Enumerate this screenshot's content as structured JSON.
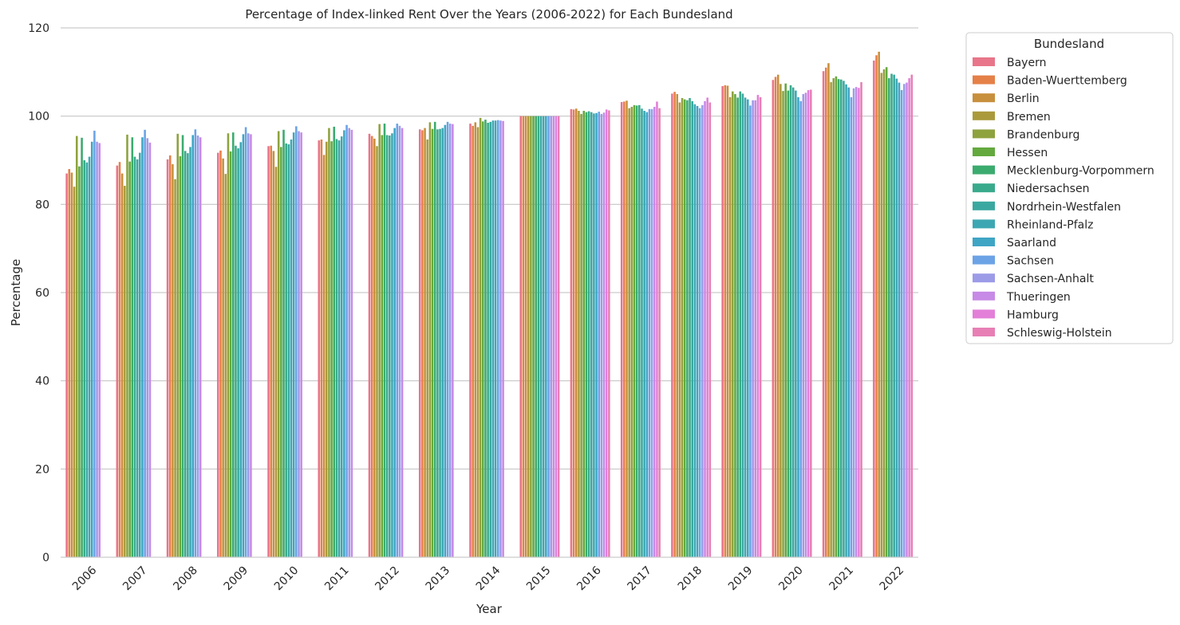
{
  "chart_data": {
    "type": "bar",
    "title": "Percentage of Index-linked Rent Over the Years (2006-2022) for Each Bundesland",
    "xlabel": "Year",
    "ylabel": "Percentage",
    "ylim": [
      0,
      120
    ],
    "yticks": [
      0,
      20,
      40,
      60,
      80,
      100,
      120
    ],
    "grid": "horizontal",
    "legend_title": "Bundesland",
    "legend_position": "outside-right",
    "categories": [
      "2006",
      "2007",
      "2008",
      "2009",
      "2010",
      "2011",
      "2012",
      "2013",
      "2014",
      "2015",
      "2016",
      "2017",
      "2018",
      "2019",
      "2020",
      "2021",
      "2022"
    ],
    "series": [
      {
        "name": "Bayern",
        "color": "#e8758a",
        "values": [
          87.0,
          88.8,
          90.2,
          91.7,
          93.2,
          94.5,
          96.0,
          97.0,
          98.3,
          100,
          101.6,
          103.2,
          105.1,
          106.8,
          108.2,
          110.2,
          112.6
        ]
      },
      {
        "name": "Baden-Wuerttemberg",
        "color": "#e58048",
        "values": [
          88.0,
          89.6,
          91.1,
          92.2,
          93.3,
          94.7,
          95.5,
          96.8,
          97.8,
          100,
          101.5,
          103.3,
          105.5,
          107.0,
          108.9,
          111.0,
          113.8
        ]
      },
      {
        "name": "Berlin",
        "color": "#c88f3c",
        "values": [
          87.2,
          87.0,
          89.1,
          90.4,
          92.1,
          91.2,
          94.9,
          97.3,
          98.6,
          100,
          101.7,
          103.5,
          105.0,
          106.9,
          109.4,
          112.0,
          114.6
        ]
      },
      {
        "name": "Bremen",
        "color": "#ab9a3c",
        "values": [
          84.0,
          84.2,
          85.7,
          86.9,
          88.5,
          94.2,
          93.2,
          94.7,
          97.5,
          100,
          101.2,
          101.8,
          103.1,
          104.3,
          107.3,
          107.7,
          109.8
        ]
      },
      {
        "name": "Brandenburg",
        "color": "#8ea23e",
        "values": [
          95.5,
          95.8,
          96.0,
          96.1,
          96.6,
          97.3,
          98.2,
          98.6,
          99.6,
          100,
          100.5,
          102.1,
          104.1,
          105.6,
          105.7,
          108.6,
          110.6
        ]
      },
      {
        "name": "Hessen",
        "color": "#63a93e",
        "values": [
          88.6,
          89.7,
          90.9,
          92.0,
          93.0,
          94.3,
          95.7,
          97.1,
          98.8,
          100,
          101.2,
          102.5,
          103.8,
          105.0,
          107.4,
          109.0,
          111.1
        ]
      },
      {
        "name": "Mecklenburg-Vorpommern",
        "color": "#3bab6e",
        "values": [
          95.1,
          95.2,
          95.7,
          96.3,
          96.9,
          97.6,
          98.3,
          98.7,
          99.2,
          100,
          100.9,
          102.4,
          103.6,
          104.2,
          105.8,
          108.4,
          108.6
        ]
      },
      {
        "name": "Niedersachsen",
        "color": "#39aa8b",
        "values": [
          90.0,
          90.8,
          92.1,
          93.3,
          93.8,
          94.8,
          95.7,
          97.0,
          98.5,
          100,
          101.1,
          102.5,
          104.1,
          105.6,
          107.0,
          108.3,
          109.6
        ]
      },
      {
        "name": "Nordrhein-Westfalen",
        "color": "#3aa8a0",
        "values": [
          89.5,
          90.2,
          91.6,
          92.7,
          93.6,
          94.5,
          95.6,
          97.1,
          98.7,
          100,
          100.9,
          101.7,
          103.4,
          105.1,
          106.5,
          108.0,
          109.4
        ]
      },
      {
        "name": "Rheinland-Pfalz",
        "color": "#3ca7b2",
        "values": [
          90.8,
          91.7,
          93.0,
          94.1,
          94.7,
          95.4,
          96.1,
          97.3,
          99.0,
          100,
          100.6,
          101.2,
          102.7,
          104.2,
          105.8,
          107.2,
          108.5
        ]
      },
      {
        "name": "Saarland",
        "color": "#3ea5c5",
        "values": [
          94.2,
          95.2,
          95.7,
          95.9,
          96.3,
          96.8,
          97.3,
          98.0,
          99.0,
          100,
          100.7,
          100.9,
          102.3,
          103.8,
          104.3,
          106.5,
          107.6
        ]
      },
      {
        "name": "Sachsen",
        "color": "#6ba3e6",
        "values": [
          96.7,
          96.9,
          97.0,
          97.5,
          97.7,
          98.0,
          98.3,
          98.7,
          99.1,
          100,
          101.0,
          101.6,
          101.8,
          102.4,
          103.4,
          104.3,
          105.9
        ]
      },
      {
        "name": "Sachsen-Anhalt",
        "color": "#9c9be8",
        "values": [
          94.2,
          95.0,
          95.6,
          96.1,
          96.6,
          97.3,
          97.8,
          98.3,
          99.0,
          100,
          100.5,
          101.6,
          102.5,
          103.6,
          105.0,
          106.3,
          107.3
        ]
      },
      {
        "name": "Thueringen",
        "color": "#c78ae6",
        "values": [
          93.9,
          94.0,
          95.2,
          95.9,
          96.3,
          96.9,
          97.3,
          98.2,
          98.9,
          100,
          100.8,
          102.1,
          103.4,
          103.6,
          105.3,
          106.6,
          107.6
        ]
      },
      {
        "name": "Hamburg",
        "color": "#e37fd8",
        "values": [
          null,
          null,
          null,
          null,
          null,
          null,
          null,
          null,
          null,
          100,
          101.5,
          103.3,
          104.2,
          104.8,
          105.9,
          106.4,
          108.6
        ]
      },
      {
        "name": "Schleswig-Holstein",
        "color": "#e77fb5",
        "values": [
          null,
          null,
          null,
          null,
          null,
          null,
          null,
          null,
          null,
          100,
          101.3,
          101.8,
          103.1,
          104.3,
          106.0,
          107.7,
          109.4
        ]
      }
    ]
  }
}
